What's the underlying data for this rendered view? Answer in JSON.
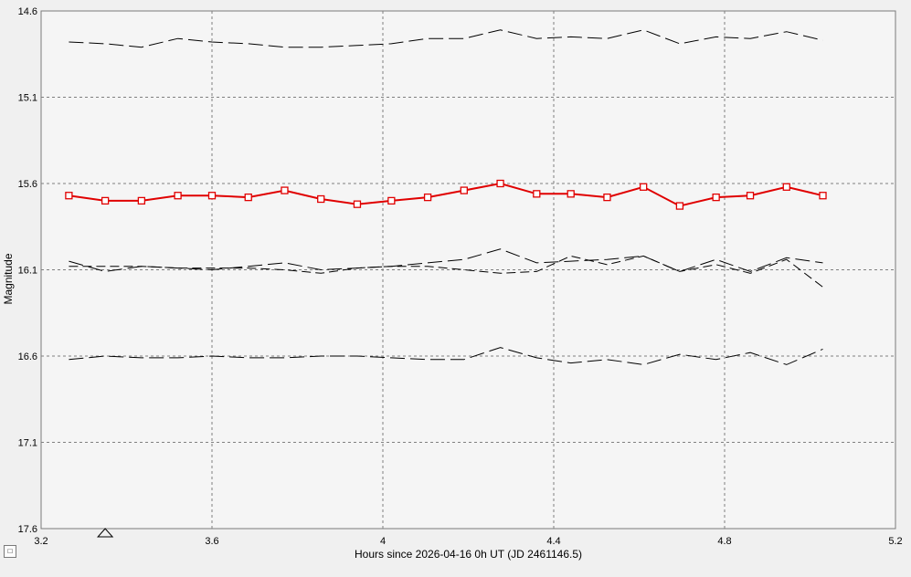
{
  "chart_data": {
    "type": "line",
    "xlabel": "Hours since 2026-04-16 0h UT (JD 2461146.5)",
    "ylabel": "Magnitude",
    "xlim": [
      3.2,
      5.2
    ],
    "ylim": [
      17.6,
      14.6
    ],
    "y_inverted": true,
    "x_ticks": [
      "3.2",
      "3.6",
      "4",
      "4.4",
      "4.8",
      "5.2"
    ],
    "y_ticks": [
      "14.6",
      "15.1",
      "15.6",
      "16.1",
      "16.6",
      "17.1",
      "17.6"
    ],
    "grid": true,
    "x": [
      3.265,
      3.35,
      3.435,
      3.52,
      3.6,
      3.685,
      3.77,
      3.855,
      3.94,
      4.02,
      4.105,
      4.19,
      4.275,
      4.36,
      4.44,
      4.525,
      4.61,
      4.695,
      4.78,
      4.86,
      4.945,
      5.03
    ],
    "series": [
      {
        "name": "",
        "color": "#000000",
        "dash": "long",
        "values": [
          14.78,
          14.79,
          14.81,
          14.76,
          14.78,
          14.79,
          14.81,
          14.81,
          14.8,
          14.79,
          14.76,
          14.76,
          14.71,
          14.76,
          14.75,
          14.76,
          14.71,
          14.79,
          14.75,
          14.76,
          14.72,
          14.77
        ]
      },
      {
        "name": "",
        "color": "#e00000",
        "marker": "square",
        "values": [
          15.67,
          15.7,
          15.7,
          15.67,
          15.67,
          15.68,
          15.64,
          15.69,
          15.72,
          15.7,
          15.68,
          15.64,
          15.6,
          15.66,
          15.66,
          15.68,
          15.62,
          15.73,
          15.68,
          15.67,
          15.62,
          15.67
        ]
      },
      {
        "name": "",
        "color": "#000000",
        "dash": "long",
        "values": [
          16.05,
          16.11,
          16.08,
          16.09,
          16.1,
          16.08,
          16.06,
          16.1,
          16.09,
          16.08,
          16.06,
          16.04,
          15.98,
          16.06,
          16.05,
          16.04,
          16.02,
          16.11,
          16.04,
          16.11,
          16.03,
          16.06
        ]
      },
      {
        "name": "",
        "color": "#000000",
        "dash": "medium",
        "values": [
          16.08,
          16.08,
          16.08,
          16.09,
          16.09,
          16.09,
          16.1,
          16.12,
          16.09,
          16.08,
          16.08,
          16.1,
          16.12,
          16.11,
          16.02,
          16.07,
          16.02,
          16.11,
          16.07,
          16.12,
          16.04,
          16.2
        ]
      },
      {
        "name": "",
        "color": "#000000",
        "dash": "long",
        "values": [
          16.62,
          16.6,
          16.61,
          16.61,
          16.6,
          16.61,
          16.61,
          16.6,
          16.6,
          16.61,
          16.62,
          16.62,
          16.55,
          16.61,
          16.64,
          16.62,
          16.65,
          16.59,
          16.62,
          16.58,
          16.65,
          16.56
        ]
      }
    ],
    "marker_x": 3.35
  },
  "controls": {
    "toggle_label": "□"
  }
}
